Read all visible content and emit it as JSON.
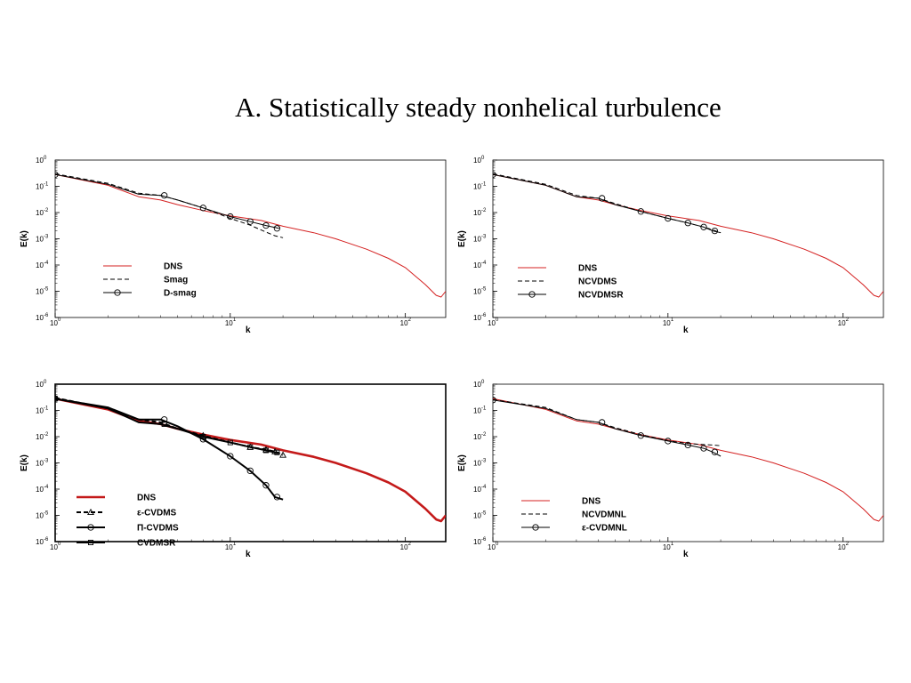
{
  "slide": {
    "title": "A. Statistically steady nonhelical  turbulence"
  },
  "colors": {
    "dns": "#d42020",
    "model": "#000000"
  },
  "chart_data": [
    {
      "type": "line",
      "xlabel": "k",
      "ylabel": "E(k)",
      "xscale": "log",
      "yscale": "log",
      "xlim": [
        1,
        170
      ],
      "ylim": [
        1e-06,
        1
      ],
      "xticks": [
        {
          "base": "10",
          "exp": "0",
          "v": 1
        },
        {
          "base": "10",
          "exp": "1",
          "v": 10
        },
        {
          "base": "10",
          "exp": "2",
          "v": 100
        }
      ],
      "yticks": [
        {
          "base": "10",
          "exp": "0",
          "v": 1
        },
        {
          "base": "10",
          "exp": "-1",
          "v": 0.1
        },
        {
          "base": "10",
          "exp": "-2",
          "v": 0.01
        },
        {
          "base": "10",
          "exp": "-3",
          "v": 0.001
        },
        {
          "base": "10",
          "exp": "-4",
          "v": 0.0001
        },
        {
          "base": "10",
          "exp": "-5",
          "v": 1e-05
        },
        {
          "base": "10",
          "exp": "-6",
          "v": 1e-06
        }
      ],
      "series": [
        {
          "name": "DNS",
          "color": "#d42020",
          "style": "solid",
          "width": 1,
          "marker": "none",
          "x": [
            1,
            2,
            3,
            4,
            5,
            7,
            10,
            15,
            20,
            30,
            40,
            60,
            80,
            100,
            130,
            150,
            160,
            170
          ],
          "y": [
            0.28,
            0.11,
            0.04,
            0.03,
            0.02,
            0.012,
            0.0075,
            0.005,
            0.003,
            0.0017,
            0.001,
            0.0004,
            0.00018,
            8e-05,
            1.8e-05,
            7e-06,
            6e-06,
            1e-05
          ]
        },
        {
          "name": "Smag",
          "color": "#000000",
          "style": "dashed",
          "width": 1,
          "marker": "none",
          "x": [
            1,
            2,
            3,
            4,
            5,
            7,
            10,
            13,
            16,
            18,
            20
          ],
          "y": [
            0.3,
            0.13,
            0.055,
            0.045,
            0.03,
            0.015,
            0.006,
            0.0033,
            0.0018,
            0.0013,
            0.0011
          ]
        },
        {
          "name": "D-smag",
          "color": "#000000",
          "style": "solid",
          "width": 1,
          "marker": "circle",
          "x": [
            1,
            2,
            3,
            4,
            5,
            7,
            10,
            13,
            16,
            18,
            19
          ],
          "y": [
            0.28,
            0.12,
            0.05,
            0.045,
            0.03,
            0.015,
            0.007,
            0.0045,
            0.0032,
            0.0027,
            0.0025
          ],
          "marker_x": [
            1,
            4.2,
            7,
            10,
            13,
            16,
            18.5
          ],
          "marker_y": [
            0.28,
            0.045,
            0.015,
            0.007,
            0.0045,
            0.0032,
            0.0025
          ]
        }
      ]
    },
    {
      "type": "line",
      "xlabel": "k",
      "ylabel": "E(k)",
      "xscale": "log",
      "yscale": "log",
      "xlim": [
        1,
        170
      ],
      "ylim": [
        1e-06,
        1
      ],
      "xticks": [
        {
          "base": "10",
          "exp": "0",
          "v": 1
        },
        {
          "base": "10",
          "exp": "1",
          "v": 10
        },
        {
          "base": "10",
          "exp": "2",
          "v": 100
        }
      ],
      "yticks": [
        {
          "base": "10",
          "exp": "0",
          "v": 1
        },
        {
          "base": "10",
          "exp": "-1",
          "v": 0.1
        },
        {
          "base": "10",
          "exp": "-2",
          "v": 0.01
        },
        {
          "base": "10",
          "exp": "-3",
          "v": 0.001
        },
        {
          "base": "10",
          "exp": "-4",
          "v": 0.0001
        },
        {
          "base": "10",
          "exp": "-5",
          "v": 1e-05
        },
        {
          "base": "10",
          "exp": "-6",
          "v": 1e-06
        }
      ],
      "series": [
        {
          "name": "DNS",
          "color": "#d42020",
          "style": "solid",
          "width": 1,
          "marker": "none",
          "x": [
            1,
            2,
            3,
            4,
            5,
            7,
            10,
            15,
            20,
            30,
            40,
            60,
            80,
            100,
            130,
            150,
            160,
            170
          ],
          "y": [
            0.28,
            0.11,
            0.04,
            0.03,
            0.02,
            0.012,
            0.0075,
            0.005,
            0.003,
            0.0017,
            0.001,
            0.0004,
            0.00018,
            8e-05,
            1.8e-05,
            7e-06,
            6e-06,
            1e-05
          ]
        },
        {
          "name": "NCVDMS",
          "color": "#000000",
          "style": "dashed",
          "width": 1,
          "marker": "none",
          "x": [
            1,
            2,
            3,
            4,
            5,
            7,
            10,
            13,
            16,
            18,
            20
          ],
          "y": [
            0.3,
            0.12,
            0.045,
            0.035,
            0.022,
            0.011,
            0.006,
            0.004,
            0.0028,
            0.0022,
            0.0017
          ]
        },
        {
          "name": "NCVDMSR",
          "color": "#000000",
          "style": "solid",
          "width": 1,
          "marker": "circle",
          "x": [
            1,
            2,
            3,
            4,
            5,
            7,
            10,
            13,
            16,
            18,
            20
          ],
          "y": [
            0.28,
            0.11,
            0.04,
            0.035,
            0.02,
            0.011,
            0.006,
            0.004,
            0.0028,
            0.002,
            0.0017
          ],
          "marker_x": [
            1,
            4.2,
            7,
            10,
            13,
            16,
            18.5
          ],
          "marker_y": [
            0.28,
            0.035,
            0.011,
            0.006,
            0.004,
            0.0028,
            0.002
          ]
        }
      ]
    },
    {
      "type": "line",
      "xlabel": "k",
      "ylabel": "E(k)",
      "xscale": "log",
      "yscale": "log",
      "xlim": [
        1,
        170
      ],
      "ylim": [
        1e-06,
        1
      ],
      "xticks": [
        {
          "base": "10",
          "exp": "0",
          "v": 1
        },
        {
          "base": "10",
          "exp": "1",
          "v": 10
        },
        {
          "base": "10",
          "exp": "2",
          "v": 100
        }
      ],
      "yticks": [
        {
          "base": "10",
          "exp": "0",
          "v": 1
        },
        {
          "base": "10",
          "exp": "-1",
          "v": 0.1
        },
        {
          "base": "10",
          "exp": "-2",
          "v": 0.01
        },
        {
          "base": "10",
          "exp": "-3",
          "v": 0.001
        },
        {
          "base": "10",
          "exp": "-4",
          "v": 0.0001
        },
        {
          "base": "10",
          "exp": "-5",
          "v": 1e-05
        },
        {
          "base": "10",
          "exp": "-6",
          "v": 1e-06
        }
      ],
      "series": [
        {
          "name": "DNS",
          "color": "#c41a1a",
          "style": "solid",
          "width": 2.6,
          "marker": "none",
          "x": [
            1,
            2,
            3,
            4,
            5,
            7,
            10,
            15,
            20,
            30,
            40,
            60,
            80,
            100,
            130,
            150,
            160,
            170
          ],
          "y": [
            0.28,
            0.11,
            0.04,
            0.03,
            0.02,
            0.012,
            0.0075,
            0.005,
            0.003,
            0.0017,
            0.001,
            0.0004,
            0.00018,
            8e-05,
            1.8e-05,
            7e-06,
            6e-06,
            1e-05
          ]
        },
        {
          "name": "ε-CVDMS",
          "color": "#000000",
          "style": "dashed",
          "width": 2,
          "marker": "triangle",
          "x": [
            1,
            2,
            3,
            4,
            5,
            7,
            10,
            13,
            16,
            18,
            20
          ],
          "y": [
            0.3,
            0.12,
            0.045,
            0.035,
            0.02,
            0.011,
            0.006,
            0.004,
            0.0032,
            0.0027,
            0.002
          ],
          "marker_x": [
            1,
            7,
            13,
            16,
            18,
            20
          ],
          "marker_y": [
            0.3,
            0.011,
            0.004,
            0.0032,
            0.0027,
            0.002
          ]
        },
        {
          "name": "Π-CVDMS",
          "color": "#000000",
          "style": "solid",
          "width": 2,
          "marker": "circle",
          "x": [
            1,
            2,
            3,
            4,
            5,
            7,
            10,
            13,
            16,
            18,
            20
          ],
          "y": [
            0.28,
            0.13,
            0.045,
            0.045,
            0.025,
            0.008,
            0.0018,
            0.0005,
            0.00014,
            5e-05,
            4e-05
          ],
          "marker_x": [
            1,
            4.2,
            7,
            10,
            13,
            16,
            18.5
          ],
          "marker_y": [
            0.28,
            0.045,
            0.008,
            0.0018,
            0.0005,
            0.00014,
            5e-05
          ]
        },
        {
          "name": "CVDMSR",
          "color": "#000000",
          "style": "solid",
          "width": 2,
          "marker": "square",
          "x": [
            1,
            2,
            3,
            4,
            5,
            7,
            10,
            13,
            16,
            18,
            19
          ],
          "y": [
            0.28,
            0.12,
            0.035,
            0.03,
            0.02,
            0.01,
            0.006,
            0.004,
            0.003,
            0.0025,
            0.0024
          ],
          "marker_x": [
            1,
            4.2,
            7,
            10,
            13,
            16,
            18.5
          ],
          "marker_y": [
            0.28,
            0.03,
            0.01,
            0.006,
            0.004,
            0.003,
            0.0025
          ]
        }
      ]
    },
    {
      "type": "line",
      "xlabel": "k",
      "ylabel": "E(k)",
      "xscale": "log",
      "yscale": "log",
      "xlim": [
        1,
        170
      ],
      "ylim": [
        1e-06,
        1
      ],
      "xticks": [
        {
          "base": "10",
          "exp": "0",
          "v": 1
        },
        {
          "base": "10",
          "exp": "1",
          "v": 10
        },
        {
          "base": "10",
          "exp": "2",
          "v": 100
        }
      ],
      "yticks": [
        {
          "base": "10",
          "exp": "0",
          "v": 1
        },
        {
          "base": "10",
          "exp": "-1",
          "v": 0.1
        },
        {
          "base": "10",
          "exp": "-2",
          "v": 0.01
        },
        {
          "base": "10",
          "exp": "-3",
          "v": 0.001
        },
        {
          "base": "10",
          "exp": "-4",
          "v": 0.0001
        },
        {
          "base": "10",
          "exp": "-5",
          "v": 1e-05
        },
        {
          "base": "10",
          "exp": "-6",
          "v": 1e-06
        }
      ],
      "series": [
        {
          "name": "DNS",
          "color": "#d42020",
          "style": "solid",
          "width": 1,
          "marker": "none",
          "x": [
            1,
            2,
            3,
            4,
            5,
            7,
            10,
            15,
            20,
            30,
            40,
            60,
            80,
            100,
            130,
            150,
            160,
            170
          ],
          "y": [
            0.28,
            0.11,
            0.04,
            0.03,
            0.02,
            0.012,
            0.0075,
            0.005,
            0.003,
            0.0017,
            0.001,
            0.0004,
            0.00018,
            8e-05,
            1.8e-05,
            7e-06,
            6e-06,
            1e-05
          ]
        },
        {
          "name": "NCVDMNL",
          "color": "#000000",
          "style": "dashed",
          "width": 1,
          "marker": "none",
          "x": [
            1,
            2,
            3,
            4,
            5,
            7,
            10,
            13,
            16,
            18,
            20
          ],
          "y": [
            0.26,
            0.13,
            0.045,
            0.035,
            0.022,
            0.012,
            0.007,
            0.0055,
            0.005,
            0.0048,
            0.0045
          ]
        },
        {
          "name": "ε-CVDMNL",
          "color": "#000000",
          "style": "solid",
          "width": 1,
          "marker": "circle",
          "x": [
            1,
            2,
            3,
            4,
            5,
            7,
            10,
            13,
            16,
            18,
            20
          ],
          "y": [
            0.25,
            0.12,
            0.045,
            0.035,
            0.02,
            0.011,
            0.0068,
            0.0048,
            0.0036,
            0.0026,
            0.0018
          ],
          "marker_x": [
            1,
            4.2,
            7,
            10,
            13,
            16,
            18.5
          ],
          "marker_y": [
            0.25,
            0.035,
            0.011,
            0.0068,
            0.0048,
            0.0036,
            0.0026
          ]
        }
      ]
    }
  ]
}
